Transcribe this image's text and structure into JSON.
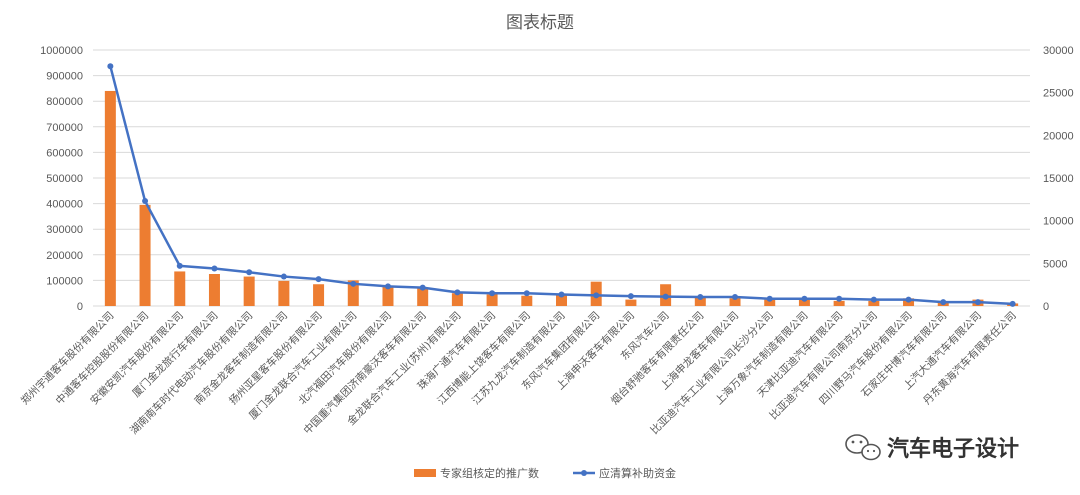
{
  "chart_data": {
    "type": "bar",
    "title": "图表标题",
    "categories": [
      "郑州宇通客车股份有限公司",
      "中通客车控股股份有限公司",
      "安徽安凯汽车股份有限公司",
      "厦门金龙旅行车有限公司",
      "湖南南车时代电动汽车股份有限公司",
      "南京金龙客车制造有限公司",
      "扬州亚星客车股份有限公司",
      "厦门金龙联合汽车工业有限公司",
      "北汽福田汽车股份有限公司",
      "中国重汽集团济南豪沃客车有限公司",
      "金龙联合汽车工业(苏州)有限公司",
      "珠海广通汽车有限公司",
      "江西博能上饶客车有限公司",
      "江苏九龙汽车制造有限公司",
      "东风汽车集团有限公司",
      "上海申沃客车有限公司",
      "东风汽车公司",
      "烟台舒驰客车有限责任公司",
      "上海申龙客车有限公司",
      "比亚迪汽车工业有限公司长沙分公司",
      "上海万象汽车制造有限公司",
      "天津比亚迪汽车有限公司",
      "比亚迪汽车有限公司南京分公司",
      "四川野马汽车股份有限公司",
      "石家庄中博汽车有限公司",
      "上汽大通汽车有限公司",
      "丹东黄海汽车有限责任公司"
    ],
    "series": [
      {
        "name": "专家组核定的推广数",
        "type": "bar",
        "axis": "left",
        "color": "#ed7d31",
        "values": [
          840000,
          395000,
          135000,
          125000,
          115000,
          98000,
          85000,
          100000,
          80000,
          70000,
          50000,
          45000,
          40000,
          45000,
          95000,
          25000,
          85000,
          35000,
          30000,
          25000,
          25000,
          20000,
          20000,
          30000,
          15000,
          25000,
          10000
        ]
      },
      {
        "name": "应清算补助资金",
        "type": "line",
        "axis": "right",
        "color": "#4472c4",
        "values": [
          28100,
          12300,
          4700,
          4400,
          3950,
          3450,
          3150,
          2600,
          2300,
          2150,
          1600,
          1500,
          1500,
          1350,
          1250,
          1150,
          1100,
          1050,
          1050,
          850,
          850,
          850,
          750,
          750,
          450,
          450,
          250
        ]
      }
    ],
    "yleft": {
      "lim": [
        0,
        1000000
      ],
      "ticks": [
        "0",
        "100000",
        "200000",
        "300000",
        "400000",
        "500000",
        "600000",
        "700000",
        "800000",
        "900000",
        "1000000"
      ]
    },
    "yright": {
      "lim": [
        0,
        30000
      ],
      "ticks": [
        "0",
        "5000",
        "10000",
        "15000",
        "20000",
        "25000",
        "30000"
      ]
    },
    "grid": true,
    "legend_position": "bottom"
  },
  "watermark": {
    "text": "汽车电子设计",
    "icon": "wechat-icon"
  }
}
